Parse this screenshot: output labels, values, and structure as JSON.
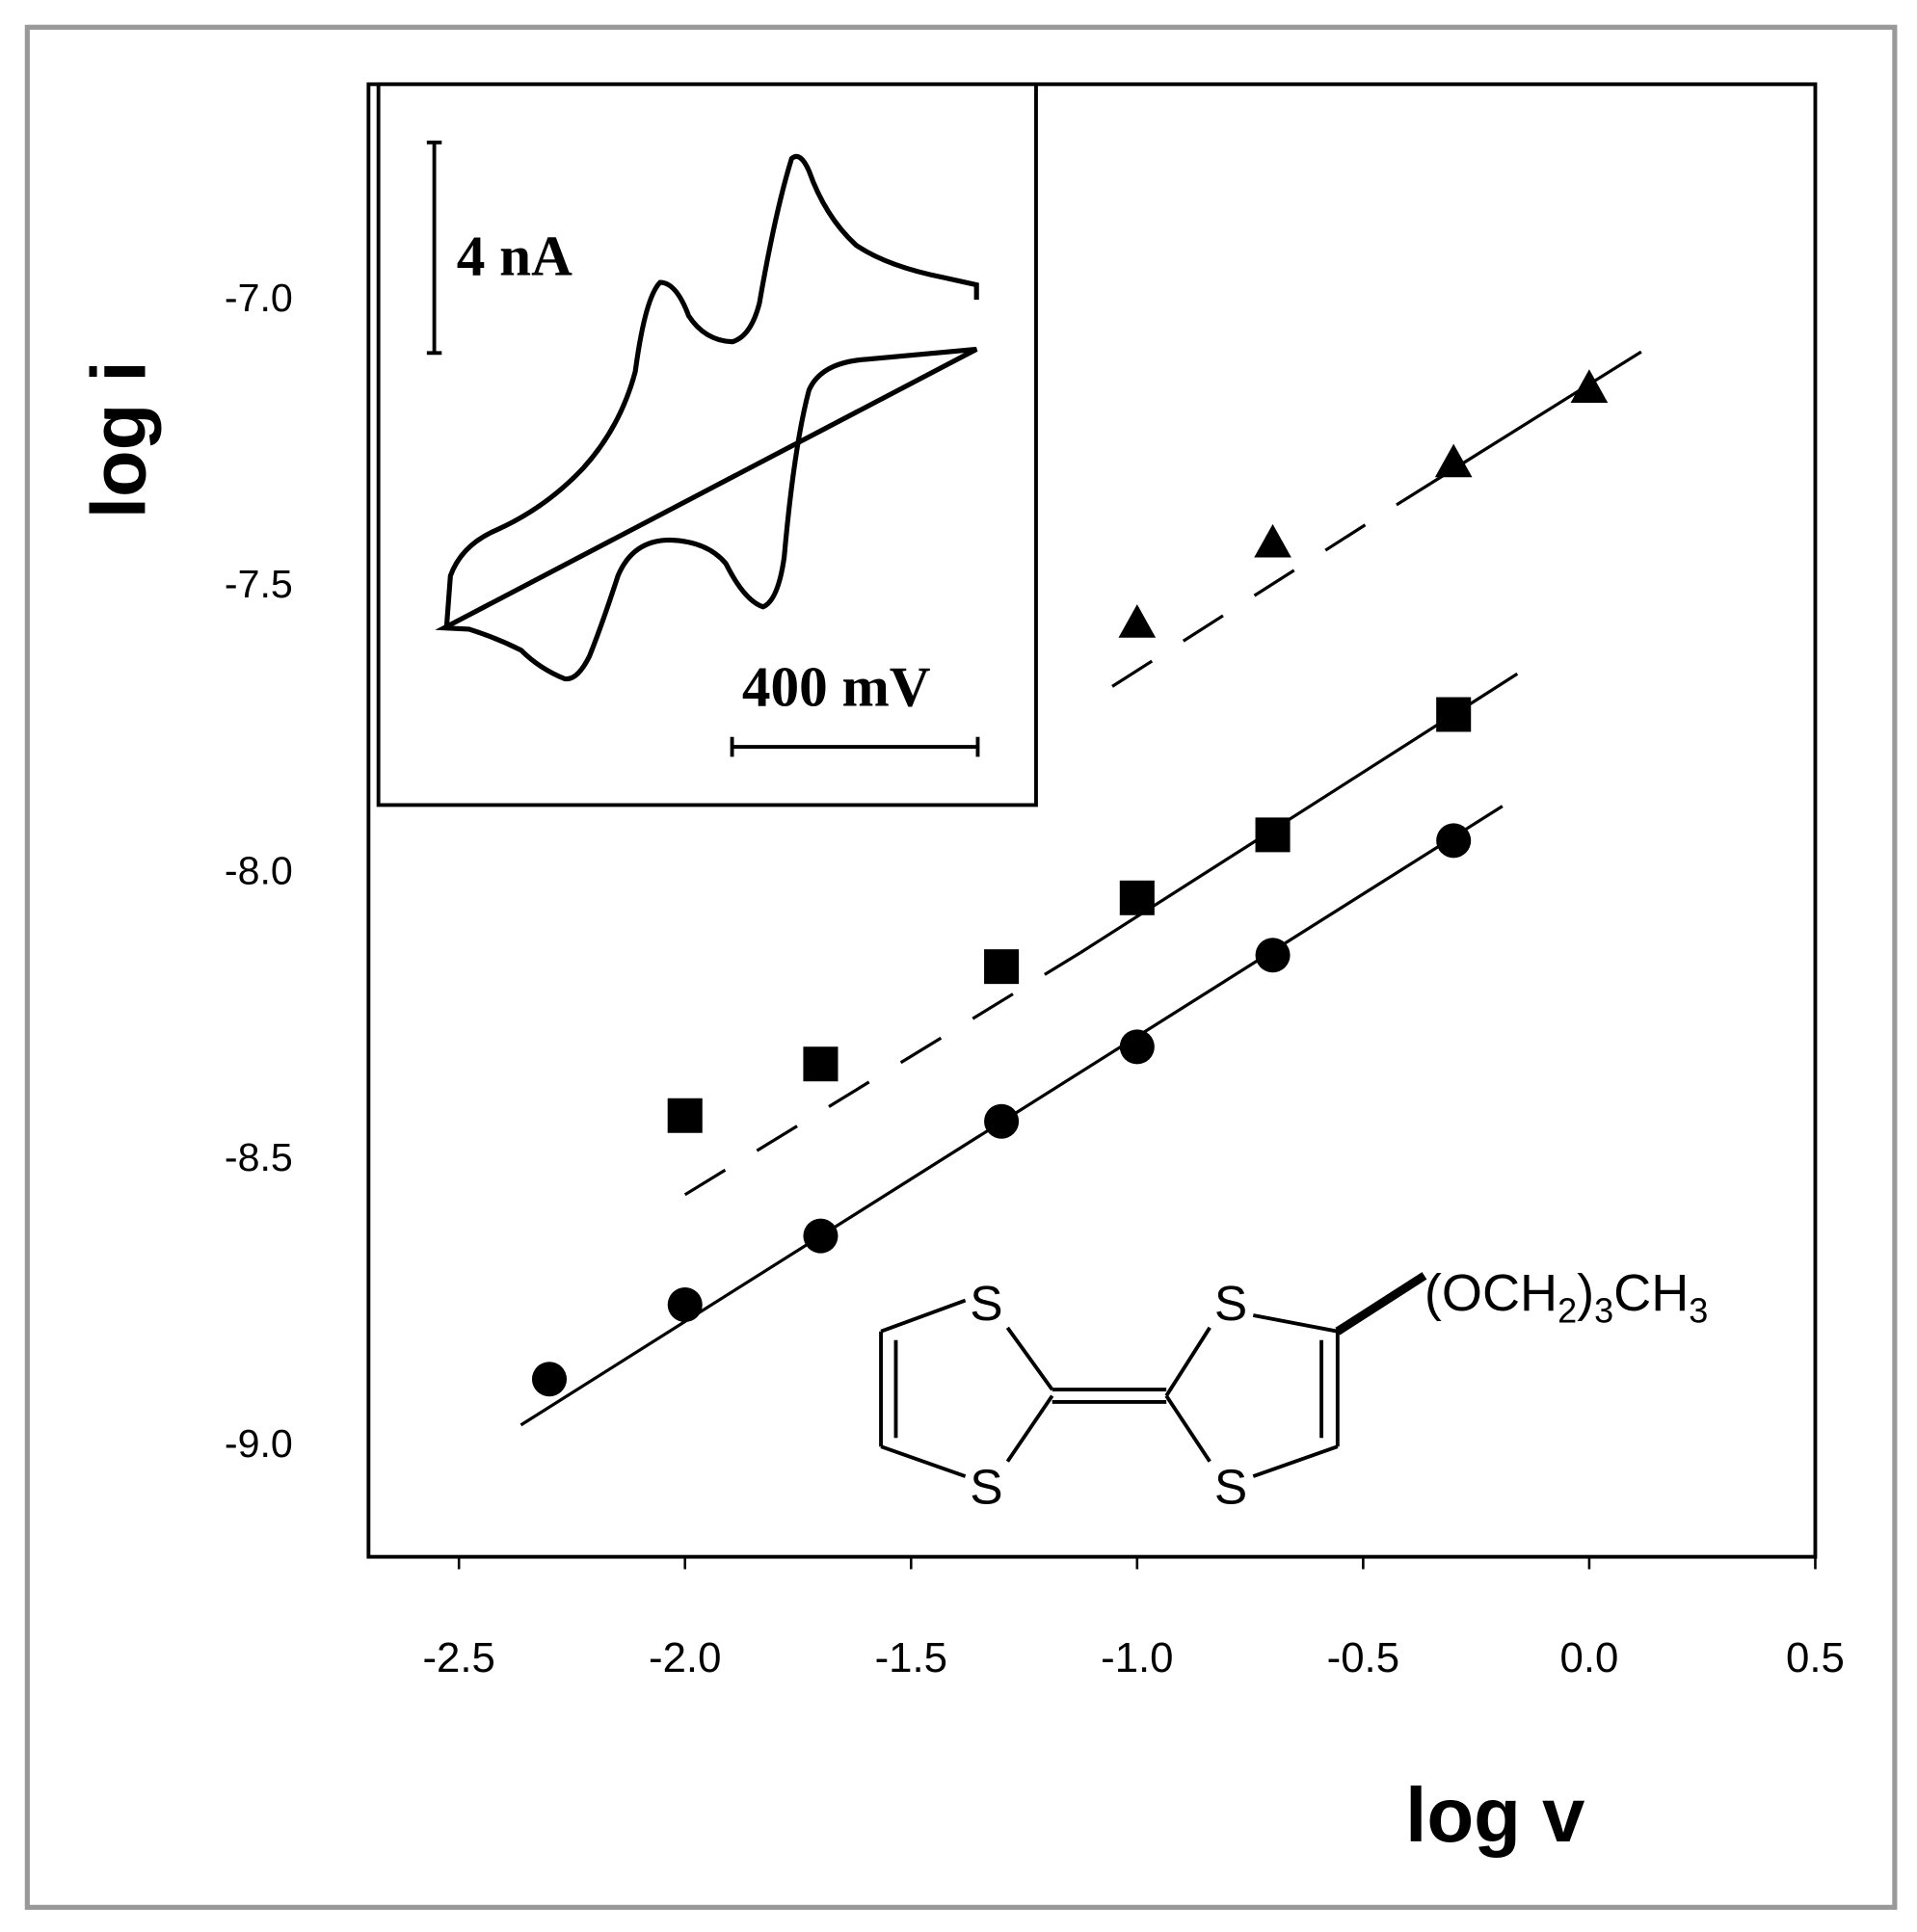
{
  "chart_data": {
    "type": "scatter",
    "x_label": "log v",
    "y_label": "log i",
    "xlim": [
      -2.7,
      0.5
    ],
    "ylim": [
      -9.2,
      -6.63
    ],
    "xticks": [
      -2.5,
      {
        "value": -2.0,
        "label": "-2.0"
      },
      -1.5,
      {
        "value": -1.0,
        "label": "-1.0"
      },
      -0.5,
      {
        "value": 0.0,
        "label": "0.0"
      },
      0.5
    ],
    "yticks": [
      {
        "value": -7.0,
        "label": "-7.0"
      },
      -7.5,
      {
        "value": -8.0,
        "label": "-8.0"
      },
      -8.5,
      {
        "value": -9.0,
        "label": "-9.0"
      }
    ],
    "series": [
      {
        "marker": "circle",
        "color": "#000000",
        "x": [
          -2.3,
          -2.0,
          -1.7,
          -1.3,
          -1.0,
          -0.7,
          -0.3
        ],
        "values": [
          -8.89,
          -8.76,
          -8.64,
          -8.44,
          -8.31,
          -8.15,
          -7.95
        ]
      },
      {
        "marker": "square",
        "color": "#000000",
        "x": [
          -2.0,
          -1.7,
          -1.3,
          -1.0,
          -0.7,
          -0.3
        ],
        "values": [
          -8.43,
          -8.34,
          -8.17,
          -8.05,
          -7.94,
          -7.73
        ]
      },
      {
        "marker": "triangle",
        "color": "#000000",
        "x": [
          -1.0,
          -0.7,
          -0.3,
          0.0
        ],
        "values": [
          -7.57,
          -7.43,
          -7.29,
          -7.16
        ]
      }
    ],
    "lines": [
      {
        "style": "solid",
        "x": [
          -2.363,
          -0.192
        ],
        "values": [
          -8.97,
          -7.89
        ]
      },
      {
        "style": "dashed",
        "x": [
          -2.0,
          -1.126
        ],
        "values": [
          -8.568,
          -8.146
        ]
      },
      {
        "style": "solid",
        "x": [
          -1.126,
          -0.159
        ],
        "values": [
          -8.146,
          -7.659
        ]
      },
      {
        "style": "dashed",
        "x": [
          -1.055,
          -0.412
        ],
        "values": [
          -7.681,
          -7.357
        ]
      },
      {
        "style": "solid",
        "x": [
          -0.412,
          0.115
        ],
        "values": [
          -7.357,
          -7.097
        ]
      }
    ],
    "inset": {
      "current_scale": "4 nA",
      "potential_scale": "400 mV"
    },
    "structure": {
      "atoms": [
        "S",
        "S",
        "S",
        "S"
      ],
      "substituent_parts": [
        "(OCH",
        "2",
        ")",
        "3",
        "CH",
        "3"
      ]
    }
  }
}
